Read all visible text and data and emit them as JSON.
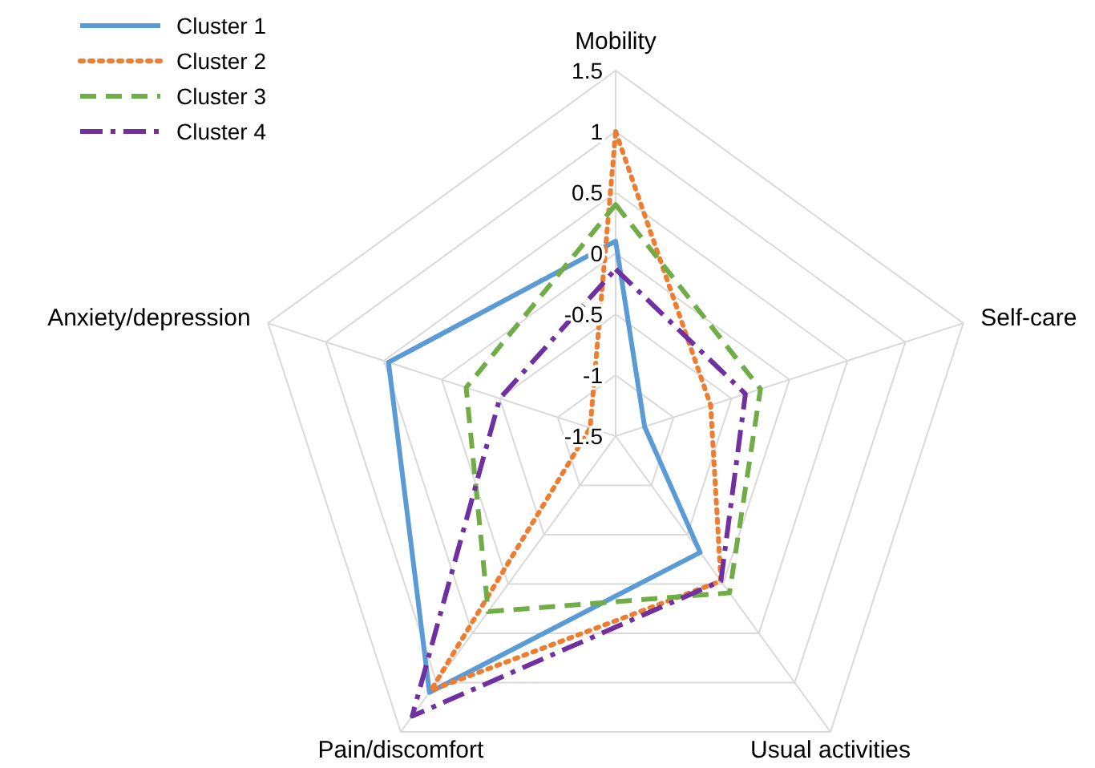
{
  "chart_data": {
    "type": "radar",
    "categories": [
      "Mobility",
      "Self-care",
      "Usual activities",
      "Pain/discomfort",
      "Anxiety/depression"
    ],
    "ylim": [
      -1.5,
      1.5
    ],
    "yticks": [
      -1.5,
      -1,
      -0.5,
      0,
      0.5,
      1,
      1.5
    ],
    "grid": true,
    "legend": "top left",
    "series": [
      {
        "name": "Cluster 1",
        "color": "#5b9bd5",
        "line_style": "solid",
        "values": [
          0.1,
          -1.25,
          -0.32,
          1.1,
          0.46
        ]
      },
      {
        "name": "Cluster 2",
        "color": "#ed7d31",
        "line_style": "dotted",
        "values": [
          1.0,
          -0.68,
          -0.03,
          1.08,
          -1.28
        ]
      },
      {
        "name": "Cluster 3",
        "color": "#70ad47",
        "line_style": "dashed",
        "values": [
          0.4,
          -0.25,
          0.09,
          0.28,
          -0.21
        ]
      },
      {
        "name": "Cluster 4",
        "color": "#7030a0",
        "line_style": "dashdot",
        "values": [
          -0.13,
          -0.38,
          -0.03,
          1.34,
          -0.5
        ]
      }
    ]
  }
}
